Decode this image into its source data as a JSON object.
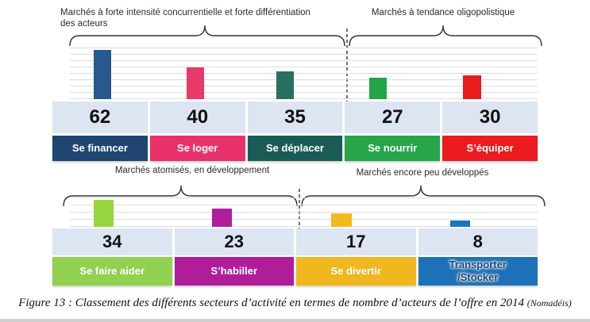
{
  "figure": {
    "caption_main": "Figure 13 : Classement des différents secteurs d’activité en termes de nombre d’acteurs de l’offre en 2014",
    "caption_source": "(Nomadéis)"
  },
  "colors": {
    "number_cell_bg": "#DCE5F1",
    "gridline": "#DEDEDE",
    "dashed_separator": "#111111",
    "brace": "#333333",
    "background": "#FFFFFF"
  },
  "chart_data": [
    {
      "type": "bar",
      "row": "top",
      "title_groups": [
        {
          "label": "Marchés à forte intensité concurrentielle et forte différentiation\ndes acteurs",
          "categories": [
            "Se financer",
            "Se loger",
            "Se déplacer"
          ]
        },
        {
          "label": "Marchés à tendance oligopolistique",
          "categories": [
            "Se nourrir",
            "S’équiper"
          ]
        }
      ],
      "categories": [
        "Se financer",
        "Se loger",
        "Se déplacer",
        "Se nourrir",
        "S’équiper"
      ],
      "values": [
        62,
        40,
        35,
        27,
        30
      ],
      "bar_colors": [
        "#27598C",
        "#E8396B",
        "#27705F",
        "#22A447",
        "#E81C1F"
      ],
      "label_colors": [
        "#1F4571",
        "#E8316B",
        "#1A5C55",
        "#27A54A",
        "#EC1B1E"
      ],
      "label_text_colors": [
        "#FFFFFF",
        "#FFFFFF",
        "#FFFFFF",
        "#FFFFFF",
        "#FFFFFF"
      ],
      "ylim": [
        0,
        70
      ],
      "grid": "horizontal",
      "legend": "none",
      "xlabel": "",
      "ylabel": ""
    },
    {
      "type": "bar",
      "row": "bottom",
      "title_groups": [
        {
          "label": "Marchés atomisés, en développement",
          "categories": [
            "Se faire aider",
            "S’habiller"
          ]
        },
        {
          "label": "Marchés encore peu développés",
          "categories": [
            "Se divertir",
            "Transporter /Stocker"
          ]
        }
      ],
      "categories": [
        "Se faire aider",
        "S’habiller",
        "Se divertir",
        "Transporter\n/Stocker"
      ],
      "values": [
        34,
        23,
        17,
        8
      ],
      "bar_colors": [
        "#97D53F",
        "#AE1E9B",
        "#F2BA1E",
        "#1C76BE"
      ],
      "label_colors": [
        "#92D050",
        "#B01D9B",
        "#F0B71F",
        "#1D71B8"
      ],
      "label_text_colors": [
        "#FFFFFF",
        "#FFFFFF",
        "#FFFFFF",
        "#1F4571"
      ],
      "ylim": [
        0,
        40
      ],
      "grid": "horizontal",
      "legend": "none",
      "xlabel": "",
      "ylabel": ""
    }
  ]
}
